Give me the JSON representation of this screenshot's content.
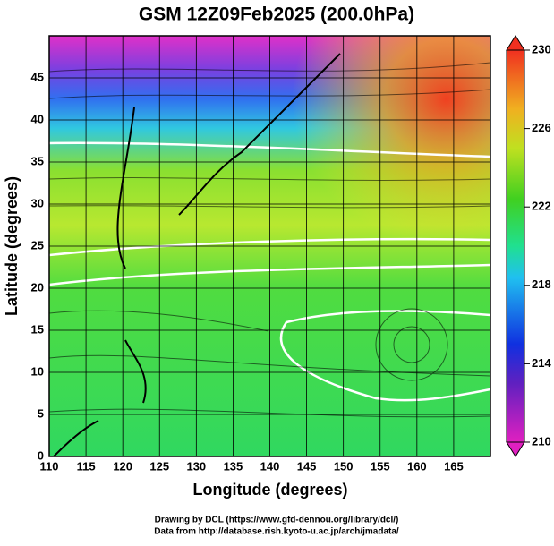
{
  "title": "GSM 12Z09Feb2025 (200.0hPa)",
  "map": {
    "x_label": "Longitude (degrees)",
    "y_label": "Latitude (degrees)",
    "xlim": [
      110,
      170
    ],
    "xticks": [
      110,
      115,
      120,
      125,
      130,
      135,
      140,
      145,
      150,
      155,
      160,
      165
    ],
    "ylim": [
      0,
      50
    ],
    "yticks": [
      0,
      5,
      10,
      15,
      20,
      25,
      30,
      35,
      40,
      45
    ]
  },
  "colorbar": {
    "clim": [
      210,
      230
    ],
    "ticks": [
      210,
      214,
      218,
      222,
      226,
      230
    ]
  },
  "credits": [
    "Drawing by DCL (https://www.gfd-dennou.org/library/dcl/)",
    "Data from http://database.rish.kyoto-u.ac.jp/arch/jmadata/"
  ]
}
